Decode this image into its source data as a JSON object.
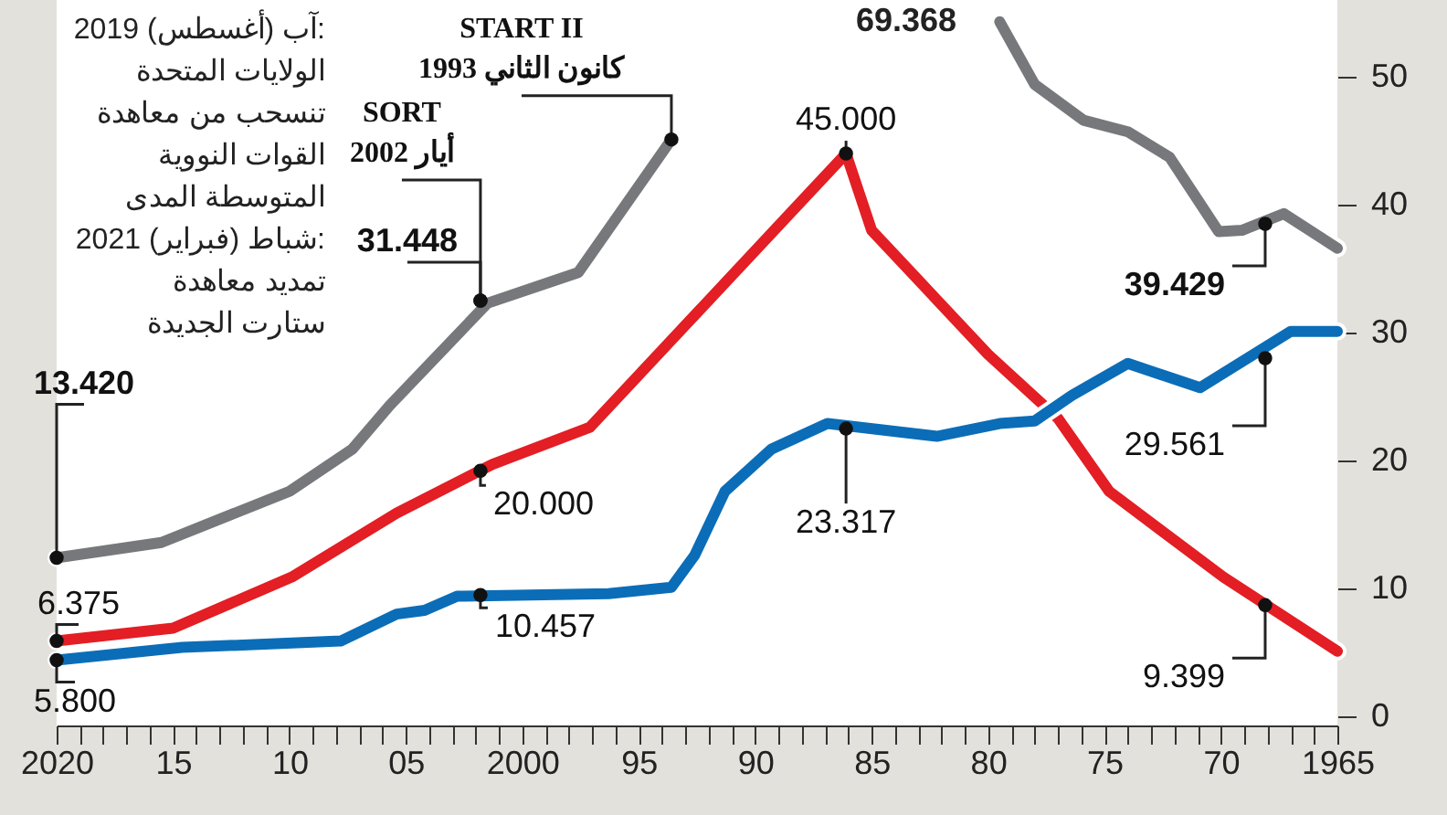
{
  "chart_data": {
    "type": "line",
    "xlim": [
      2020,
      1965
    ],
    "ylim": [
      -0.7,
      56
    ],
    "xticks": [
      {
        "value": 2020,
        "label": "2020"
      },
      {
        "value": 2019,
        "label": null
      },
      {
        "value": 2018,
        "label": null
      },
      {
        "value": 2017,
        "label": null
      },
      {
        "value": 2016,
        "label": null
      },
      {
        "value": 2015,
        "label": "15"
      },
      {
        "value": 2014,
        "label": null
      },
      {
        "value": 2013,
        "label": null
      },
      {
        "value": 2012,
        "label": null
      },
      {
        "value": 2011,
        "label": null
      },
      {
        "value": 2010,
        "label": "10"
      },
      {
        "value": 2009,
        "label": null
      },
      {
        "value": 2008,
        "label": null
      },
      {
        "value": 2007,
        "label": null
      },
      {
        "value": 2006,
        "label": null
      },
      {
        "value": 2005,
        "label": "05"
      },
      {
        "value": 2004,
        "label": null
      },
      {
        "value": 2003,
        "label": null
      },
      {
        "value": 2002,
        "label": null
      },
      {
        "value": 2001,
        "label": null
      },
      {
        "value": 2000,
        "label": "2000"
      },
      {
        "value": 1999,
        "label": null
      },
      {
        "value": 1998,
        "label": null
      },
      {
        "value": 1997,
        "label": null
      },
      {
        "value": 1996,
        "label": null
      },
      {
        "value": 1995,
        "label": "95"
      },
      {
        "value": 1994,
        "label": null
      },
      {
        "value": 1993,
        "label": null
      },
      {
        "value": 1992,
        "label": null
      },
      {
        "value": 1991,
        "label": null
      },
      {
        "value": 1990,
        "label": "90"
      },
      {
        "value": 1989,
        "label": null
      },
      {
        "value": 1988,
        "label": null
      },
      {
        "value": 1987,
        "label": null
      },
      {
        "value": 1986,
        "label": null
      },
      {
        "value": 1985,
        "label": "85"
      },
      {
        "value": 1984,
        "label": null
      },
      {
        "value": 1983,
        "label": null
      },
      {
        "value": 1982,
        "label": null
      },
      {
        "value": 1981,
        "label": null
      },
      {
        "value": 1980,
        "label": "80"
      },
      {
        "value": 1979,
        "label": null
      },
      {
        "value": 1978,
        "label": null
      },
      {
        "value": 1977,
        "label": null
      },
      {
        "value": 1976,
        "label": null
      },
      {
        "value": 1975,
        "label": "75"
      },
      {
        "value": 1974,
        "label": null
      },
      {
        "value": 1973,
        "label": null
      },
      {
        "value": 1972,
        "label": null
      },
      {
        "value": 1971,
        "label": null
      },
      {
        "value": 1970,
        "label": "70"
      },
      {
        "value": 1969,
        "label": null
      },
      {
        "value": 1968,
        "label": null
      },
      {
        "value": 1967,
        "label": null
      },
      {
        "value": 1966,
        "label": null
      },
      {
        "value": 1965,
        "label": "1965"
      }
    ],
    "yticks": [
      0,
      10,
      20,
      30,
      40,
      50
    ],
    "grid": false,
    "marker": "none",
    "line_style": "solid",
    "series": [
      {
        "color": "#77787b",
        "x": [
          2020,
          2015.5,
          2010,
          2007.3,
          2005.7,
          2001.5,
          1997.6,
          1993.6,
          1991,
          1986,
          1982.2,
          1979.5,
          1978,
          1975.9,
          1974,
          1972.2,
          1970.1,
          1969.1,
          1967.3,
          1965
        ],
        "values": [
          12.4,
          13.6,
          17.6,
          20.9,
          24.3,
          32.3,
          34.7,
          45.1,
          null,
          null,
          null,
          54.3,
          49.4,
          46.6,
          45.7,
          43.7,
          37.9,
          38.0,
          39.3,
          36.6
        ]
      },
      {
        "color": "#e31e24",
        "x": [
          2020,
          2015,
          2009.9,
          2005.4,
          2001.3,
          1997.1,
          1986.1,
          1985,
          1980,
          1977,
          1974.8,
          1969.9,
          1965
        ],
        "values": [
          5.9,
          6.9,
          10.9,
          15.9,
          19.7,
          22.6,
          44,
          38,
          28.3,
          23.3,
          17.6,
          10.9,
          5.1
        ]
      },
      {
        "color": "#0b6db7",
        "x": [
          2020,
          2014.6,
          2007.8,
          2005.4,
          2004.2,
          2002.8,
          1996.3,
          1993.6,
          1992.6,
          1991.3,
          1989.3,
          1986.9,
          1982.2,
          1979.5,
          1978,
          1976.4,
          1974,
          1970.9,
          1967,
          1965
        ],
        "values": [
          4.4,
          5.4,
          5.9,
          8.0,
          8.3,
          9.4,
          9.6,
          10.1,
          12.6,
          17.6,
          20.9,
          22.9,
          21.9,
          22.9,
          23.1,
          25.1,
          27.6,
          25.7,
          30.1,
          30.1
        ]
      }
    ],
    "annotations": [
      "آب (أغسطس) 2019:\nالولايات المتحدة\nتنسحب من معاهدة\nالقوات النووية\nالمتوسطة المدى\nشباط (فبراير) 2021:\nتمديد معاهدة\nستارت الجديدة",
      {
        "text": "START II\nكانون الثاني 1993",
        "x": 1993.6,
        "y": 45.1
      },
      {
        "text": "SORT\nأيار 2002",
        "x": 2001.8,
        "y": 32.5
      },
      {
        "text": "31.448",
        "x": 2001.8,
        "y": 32.5
      },
      {
        "text": "13.420",
        "x": 2020,
        "y": 12.4
      },
      {
        "text": "6.375",
        "x": 2020,
        "y": 5.9
      },
      {
        "text": "5.800",
        "x": 2020,
        "y": 4.4
      },
      {
        "text": "20.000",
        "x": 2001.8,
        "y": 19.2
      },
      {
        "text": "10.457",
        "x": 2001.8,
        "y": 9.5
      },
      {
        "text": "45.000",
        "x": 1986.1,
        "y": 44
      },
      "69.368",
      {
        "text": "23.317",
        "x": 1986.1,
        "y": 22.5
      },
      {
        "text": "39.429",
        "x": 1968.1,
        "y": 38.5
      },
      {
        "text": "29.561",
        "x": 1968.1,
        "y": 28
      },
      {
        "text": "9.399",
        "x": 1968.1,
        "y": 8.7
      }
    ]
  }
}
